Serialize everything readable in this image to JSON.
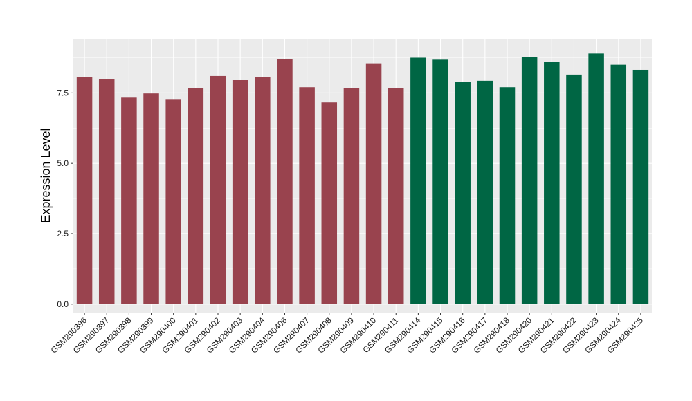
{
  "chart_data": {
    "type": "bar",
    "title": "",
    "xlabel": "",
    "ylabel": "Expression Level",
    "ylim": [
      -0.3,
      9.4
    ],
    "yticks": [
      0.0,
      2.5,
      5.0,
      7.5
    ],
    "ytick_labels": [
      "0.0",
      "2.5",
      "5.0",
      "7.5"
    ],
    "grid": true,
    "legend": "none",
    "categories": [
      "GSM290396",
      "GSM290397",
      "GSM290398",
      "GSM290399",
      "GSM290400",
      "GSM290401",
      "GSM290402",
      "GSM290403",
      "GSM290404",
      "GSM290406",
      "GSM290407",
      "GSM290408",
      "GSM290409",
      "GSM290410",
      "GSM290411",
      "GSM290414",
      "GSM290415",
      "GSM290416",
      "GSM290417",
      "GSM290418",
      "GSM290420",
      "GSM290421",
      "GSM290422",
      "GSM290423",
      "GSM290424",
      "GSM290425"
    ],
    "values": [
      8.07,
      8.0,
      7.33,
      7.48,
      7.28,
      7.66,
      8.1,
      7.97,
      8.07,
      8.7,
      7.7,
      7.16,
      7.66,
      8.55,
      7.68,
      8.75,
      8.68,
      7.88,
      7.93,
      7.7,
      8.78,
      8.6,
      8.15,
      8.9,
      8.5,
      8.32
    ],
    "bar_colors": [
      "#99434e",
      "#99434e",
      "#99434e",
      "#99434e",
      "#99434e",
      "#99434e",
      "#99434e",
      "#99434e",
      "#99434e",
      "#99434e",
      "#99434e",
      "#99434e",
      "#99434e",
      "#99434e",
      "#99434e",
      "#006644",
      "#006644",
      "#006644",
      "#006644",
      "#006644",
      "#006644",
      "#006644",
      "#006644",
      "#006644",
      "#006644",
      "#006644"
    ],
    "panel_background": "#ebebeb",
    "gridline_color": "#ffffff"
  }
}
